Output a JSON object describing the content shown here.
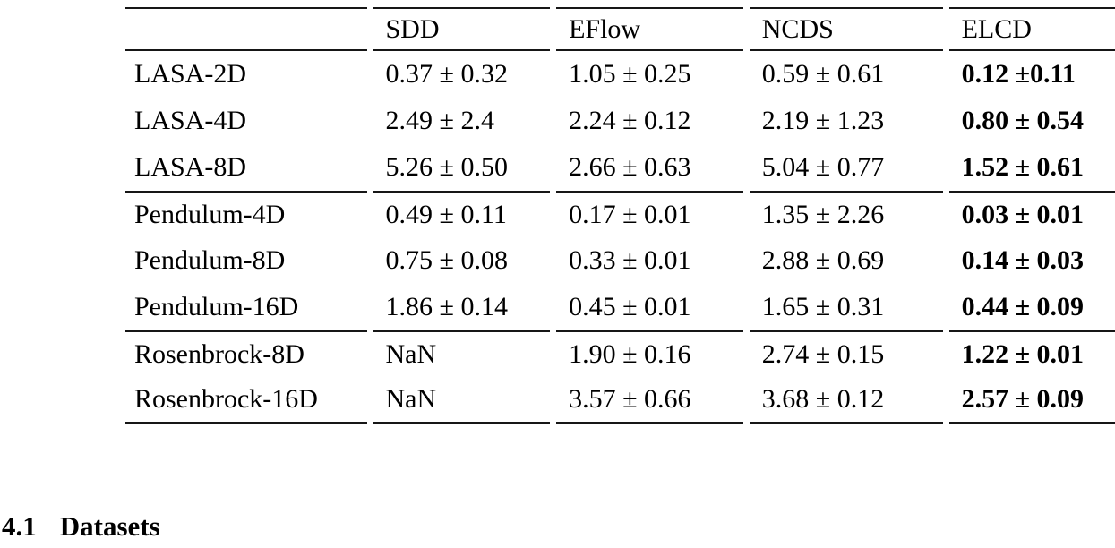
{
  "table": {
    "columns": [
      {
        "key": "dataset",
        "label": ""
      },
      {
        "key": "sdd",
        "label": "SDD"
      },
      {
        "key": "eflow",
        "label": "EFlow"
      },
      {
        "key": "ncds",
        "label": "NCDS"
      },
      {
        "key": "elcd",
        "label": "ELCD"
      }
    ],
    "bold_column": "elcd",
    "groups": [
      {
        "name": "lasa",
        "rows": [
          {
            "dataset": "LASA-2D",
            "sdd": "0.37 ± 0.32",
            "eflow": "1.05 ± 0.25",
            "ncds": "0.59 ± 0.61",
            "elcd": "0.12 ±0.11"
          },
          {
            "dataset": "LASA-4D",
            "sdd": "2.49 ± 2.4",
            "eflow": "2.24 ± 0.12",
            "ncds": "2.19 ± 1.23",
            "elcd": "0.80 ± 0.54"
          },
          {
            "dataset": "LASA-8D",
            "sdd": "5.26 ± 0.50",
            "eflow": "2.66 ± 0.63",
            "ncds": "5.04 ± 0.77",
            "elcd": "1.52 ± 0.61"
          }
        ]
      },
      {
        "name": "pendulum",
        "rows": [
          {
            "dataset": "Pendulum-4D",
            "sdd": "0.49 ± 0.11",
            "eflow": "0.17 ± 0.01",
            "ncds": "1.35 ± 2.26",
            "elcd": "0.03 ± 0.01"
          },
          {
            "dataset": "Pendulum-8D",
            "sdd": "0.75 ± 0.08",
            "eflow": "0.33 ± 0.01",
            "ncds": "2.88 ± 0.69",
            "elcd": "0.14 ± 0.03"
          },
          {
            "dataset": "Pendulum-16D",
            "sdd": "1.86 ± 0.14",
            "eflow": "0.45 ± 0.01",
            "ncds": "1.65 ± 0.31",
            "elcd": "0.44 ± 0.09"
          }
        ]
      },
      {
        "name": "rosenbrock",
        "rows": [
          {
            "dataset": "Rosenbrock-8D",
            "sdd": "NaN",
            "eflow": "1.90 ± 0.16",
            "ncds": "2.74 ± 0.15",
            "elcd": "1.22 ± 0.01"
          },
          {
            "dataset": "Rosenbrock-16D",
            "sdd": "NaN",
            "eflow": "3.57 ± 0.66",
            "ncds": "3.68 ± 0.12",
            "elcd": "2.57 ± 0.09"
          }
        ]
      }
    ]
  },
  "section_heading": {
    "number": "4.1",
    "title": "Datasets"
  }
}
